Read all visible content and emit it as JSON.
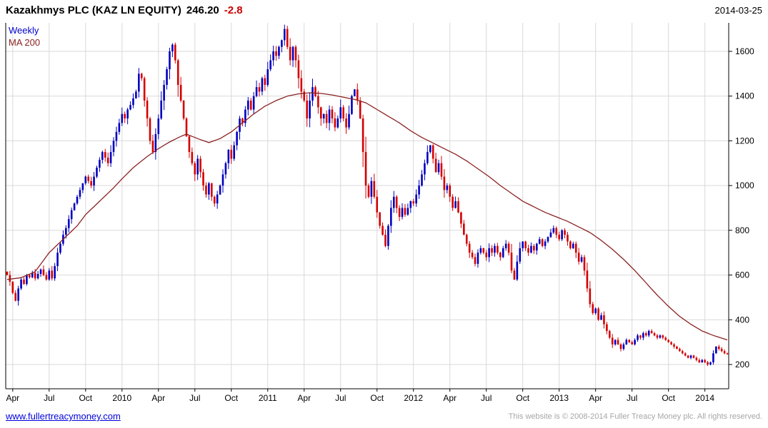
{
  "header": {
    "title": "Kazakhmys PLC (KAZ LN EQUITY)",
    "price": "246.20",
    "change": "-2.8",
    "date": "2014-03-25"
  },
  "legend": {
    "weekly": "Weekly",
    "ma200": "MA 200"
  },
  "footer": {
    "link": "www.fullertreacymoney.com",
    "copyright": "This website is © 2008-2014 Fuller Treacy Money plc. All rights reserved."
  },
  "colors": {
    "up": "#0000bf",
    "down": "#d40000",
    "ma": "#8b2222",
    "grid": "#d9d9d9",
    "axis": "#000000",
    "title_change": "#cc0000",
    "link": "#0000dd",
    "copyright": "#a6a6a6"
  },
  "chart_data": {
    "type": "candlestick",
    "title": "Kazakhmys PLC (KAZ LN EQUITY)",
    "frequency": "Weekly",
    "overlay": "MA 200",
    "last_price": 246.2,
    "change": -2.8,
    "as_of_date": "2014-03-25",
    "ylim": [
      90,
      1740
    ],
    "grid": true,
    "y_ticks": [
      200,
      400,
      600,
      800,
      1000,
      1200,
      1400,
      1600
    ],
    "x_ticks": [
      {
        "label": "Apr",
        "week": 2
      },
      {
        "label": "Jul",
        "week": 15
      },
      {
        "label": "Oct",
        "week": 28
      },
      {
        "label": "2010",
        "week": 41
      },
      {
        "label": "Apr",
        "week": 54
      },
      {
        "label": "Jul",
        "week": 67
      },
      {
        "label": "Oct",
        "week": 80
      },
      {
        "label": "2011",
        "week": 93
      },
      {
        "label": "Apr",
        "week": 106
      },
      {
        "label": "Jul",
        "week": 119
      },
      {
        "label": "Oct",
        "week": 132
      },
      {
        "label": "2012",
        "week": 145
      },
      {
        "label": "Apr",
        "week": 158
      },
      {
        "label": "Jul",
        "week": 171
      },
      {
        "label": "Oct",
        "week": 184
      },
      {
        "label": "2013",
        "week": 197
      },
      {
        "label": "Apr",
        "week": 210
      },
      {
        "label": "Jul",
        "week": 223
      },
      {
        "label": "Oct",
        "week": 236
      },
      {
        "label": "2014",
        "week": 249
      }
    ],
    "series": [
      {
        "name": "Weekly",
        "type": "candlestick",
        "closes": [
          600,
          570,
          520,
          485,
          540,
          580,
          560,
          600,
          590,
          610,
          585,
          605,
          625,
          600,
          580,
          620,
          585,
          640,
          700,
          740,
          780,
          810,
          850,
          890,
          920,
          950,
          980,
          1010,
          1040,
          1020,
          1000,
          1040,
          1080,
          1115,
          1150,
          1125,
          1100,
          1150,
          1200,
          1240,
          1280,
          1320,
          1300,
          1340,
          1360,
          1390,
          1420,
          1500,
          1480,
          1380,
          1300,
          1200,
          1150,
          1230,
          1300,
          1380,
          1450,
          1520,
          1600,
          1630,
          1560,
          1450,
          1380,
          1300,
          1220,
          1150,
          1100,
          1050,
          1120,
          1060,
          1000,
          960,
          1010,
          950,
          920,
          960,
          1000,
          1050,
          1100,
          1160,
          1120,
          1180,
          1240,
          1300,
          1280,
          1340,
          1380,
          1340,
          1400,
          1440,
          1420,
          1480,
          1450,
          1520,
          1560,
          1600,
          1580,
          1620,
          1650,
          1700,
          1620,
          1560,
          1620,
          1560,
          1480,
          1420,
          1380,
          1300,
          1380,
          1440,
          1400,
          1350,
          1300,
          1320,
          1280,
          1340,
          1300,
          1260,
          1300,
          1350,
          1300,
          1260,
          1320,
          1400,
          1430,
          1380,
          1300,
          1150,
          1000,
          950,
          1020,
          950,
          880,
          820,
          780,
          730,
          820,
          900,
          950,
          900,
          860,
          900,
          870,
          900,
          930,
          920,
          960,
          1000,
          1050,
          1100,
          1150,
          1180,
          1120,
          1060,
          1100,
          1040,
          980,
          1000,
          950,
          900,
          930,
          880,
          830,
          780,
          740,
          700,
          680,
          650,
          700,
          720,
          700,
          680,
          720,
          700,
          730,
          700,
          680,
          720,
          740,
          700,
          620,
          580,
          660,
          720,
          750,
          720,
          700,
          730,
          710,
          740,
          760,
          730,
          750,
          770,
          790,
          810,
          780,
          760,
          800,
          780,
          750,
          720,
          740,
          700,
          660,
          680,
          620,
          540,
          470,
          430,
          450,
          400,
          420,
          380,
          350,
          320,
          290,
          310,
          290,
          270,
          290,
          310,
          300,
          290,
          310,
          330,
          320,
          340,
          330,
          350,
          340,
          330,
          320,
          330,
          320,
          310,
          300,
          290,
          280,
          270,
          260,
          250,
          240,
          230,
          240,
          230,
          220,
          210,
          220,
          210,
          200,
          210,
          250,
          280,
          270,
          260,
          250,
          246.2
        ]
      },
      {
        "name": "MA 200",
        "type": "line",
        "points": [
          [
            0,
            580
          ],
          [
            5,
            588
          ],
          [
            10,
            615
          ],
          [
            15,
            700
          ],
          [
            20,
            760
          ],
          [
            25,
            820
          ],
          [
            28,
            870
          ],
          [
            33,
            930
          ],
          [
            38,
            990
          ],
          [
            41,
            1030
          ],
          [
            45,
            1080
          ],
          [
            50,
            1130
          ],
          [
            54,
            1165
          ],
          [
            58,
            1195
          ],
          [
            62,
            1220
          ],
          [
            64,
            1230
          ],
          [
            68,
            1210
          ],
          [
            72,
            1192
          ],
          [
            76,
            1210
          ],
          [
            80,
            1240
          ],
          [
            84,
            1280
          ],
          [
            88,
            1320
          ],
          [
            92,
            1355
          ],
          [
            96,
            1380
          ],
          [
            100,
            1400
          ],
          [
            104,
            1410
          ],
          [
            108,
            1415
          ],
          [
            112,
            1412
          ],
          [
            116,
            1405
          ],
          [
            120,
            1395
          ],
          [
            124,
            1385
          ],
          [
            128,
            1370
          ],
          [
            132,
            1340
          ],
          [
            136,
            1310
          ],
          [
            140,
            1280
          ],
          [
            144,
            1245
          ],
          [
            148,
            1215
          ],
          [
            152,
            1190
          ],
          [
            156,
            1165
          ],
          [
            160,
            1140
          ],
          [
            164,
            1110
          ],
          [
            168,
            1075
          ],
          [
            172,
            1040
          ],
          [
            176,
            1000
          ],
          [
            180,
            965
          ],
          [
            184,
            930
          ],
          [
            188,
            905
          ],
          [
            192,
            880
          ],
          [
            196,
            860
          ],
          [
            200,
            840
          ],
          [
            204,
            815
          ],
          [
            208,
            790
          ],
          [
            212,
            755
          ],
          [
            216,
            715
          ],
          [
            220,
            670
          ],
          [
            224,
            620
          ],
          [
            228,
            565
          ],
          [
            232,
            510
          ],
          [
            236,
            460
          ],
          [
            240,
            415
          ],
          [
            244,
            380
          ],
          [
            248,
            350
          ],
          [
            252,
            330
          ],
          [
            257,
            310
          ]
        ]
      }
    ]
  }
}
